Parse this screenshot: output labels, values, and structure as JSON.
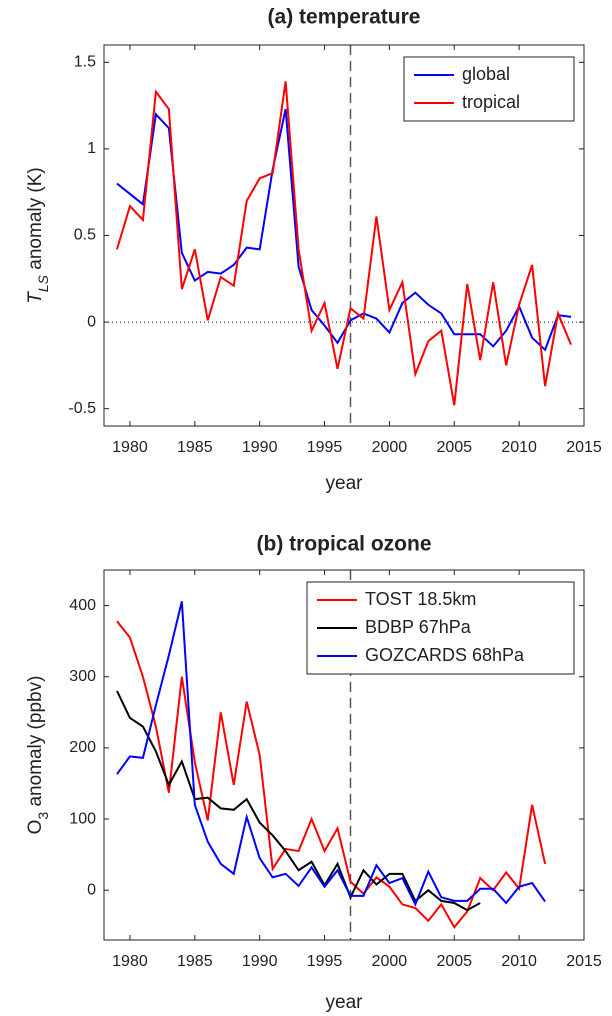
{
  "chart_data": [
    {
      "type": "line",
      "title": "(a) temperature",
      "xlabel": "year",
      "ylabel_parts": [
        "T",
        "LS",
        " anomaly (K)"
      ],
      "x": [
        1979,
        1980,
        1981,
        1982,
        1983,
        1984,
        1985,
        1986,
        1987,
        1988,
        1989,
        1990,
        1991,
        1992,
        1993,
        1994,
        1995,
        1996,
        1997,
        1998,
        1999,
        2000,
        2001,
        2002,
        2003,
        2004,
        2005,
        2006,
        2007,
        2008,
        2009,
        2010,
        2011,
        2012,
        2013,
        2014
      ],
      "series": [
        {
          "name": "global",
          "color": "#0000ff",
          "values": [
            0.8,
            0.74,
            0.68,
            1.2,
            1.12,
            0.4,
            0.24,
            0.29,
            0.28,
            0.33,
            0.43,
            0.42,
            0.88,
            1.23,
            0.32,
            0.07,
            -0.02,
            -0.12,
            0.01,
            0.05,
            0.02,
            -0.06,
            0.11,
            0.17,
            0.1,
            0.05,
            -0.07,
            -0.07,
            -0.07,
            -0.14,
            -0.05,
            0.09,
            -0.09,
            -0.16,
            0.04,
            0.03
          ]
        },
        {
          "name": "tropical",
          "color": "#ff0000",
          "values": [
            0.42,
            0.67,
            0.59,
            1.33,
            1.23,
            0.19,
            0.42,
            0.01,
            0.26,
            0.21,
            0.7,
            0.83,
            0.86,
            1.39,
            0.42,
            -0.05,
            0.11,
            -0.27,
            0.08,
            0.02,
            0.61,
            0.07,
            0.23,
            -0.3,
            -0.11,
            -0.05,
            -0.48,
            0.22,
            -0.22,
            0.23,
            -0.25,
            0.1,
            0.33,
            -0.37,
            0.05,
            -0.13
          ]
        }
      ],
      "xlim": [
        1978,
        2015
      ],
      "xticks": [
        1980,
        1985,
        1990,
        1995,
        2000,
        2005,
        2010,
        2015
      ],
      "ylim": [
        -0.6,
        1.6
      ],
      "yticks": [
        -0.5,
        0,
        0.5,
        1,
        1.5
      ],
      "vline": 1997,
      "hline": 0,
      "legend": "northeast"
    },
    {
      "type": "line",
      "title": "(b) tropical ozone",
      "xlabel": "year",
      "ylabel_parts": [
        "O",
        "3",
        " anomaly (ppbv)"
      ],
      "x": [
        1979,
        1980,
        1981,
        1982,
        1983,
        1984,
        1985,
        1986,
        1987,
        1988,
        1989,
        1990,
        1991,
        1992,
        1993,
        1994,
        1995,
        1996,
        1997,
        1998,
        1999,
        2000,
        2001,
        2002,
        2003,
        2004,
        2005,
        2006,
        2007,
        2008,
        2009,
        2010,
        2011,
        2012
      ],
      "series": [
        {
          "name": "TOST 18.5km",
          "color": "#ff0000",
          "values": [
            378,
            355,
            300,
            230,
            137,
            300,
            180,
            98,
            250,
            148,
            265,
            190,
            30,
            58,
            55,
            100,
            55,
            87,
            12,
            -5,
            18,
            5,
            -20,
            -25,
            -43,
            -20,
            -52,
            -30,
            17,
            0,
            25,
            2,
            120,
            37
          ]
        },
        {
          "name": "BDBP 67hPa",
          "color": "#000000",
          "values": [
            280,
            242,
            230,
            195,
            148,
            181,
            128,
            130,
            115,
            113,
            128,
            95,
            77,
            55,
            28,
            40,
            7,
            37,
            -10,
            28,
            8,
            23,
            23,
            -15,
            0,
            -15,
            -18,
            -28,
            -18,
            null,
            null,
            null,
            null,
            null
          ]
        },
        {
          "name": "GOZCARDS 68hPa",
          "color": "#0000ff",
          "values": [
            163,
            188,
            186,
            260,
            330,
            406,
            120,
            68,
            37,
            23,
            103,
            45,
            18,
            23,
            6,
            32,
            5,
            28,
            -8,
            -8,
            35,
            10,
            17,
            -20,
            26,
            -10,
            -15,
            -15,
            2,
            2,
            -18,
            5,
            10,
            -16
          ]
        }
      ],
      "xlim": [
        1978,
        2015
      ],
      "xticks": [
        1980,
        1985,
        1990,
        1995,
        2000,
        2005,
        2010,
        2015
      ],
      "ylim": [
        -70,
        450
      ],
      "yticks": [
        0,
        100,
        200,
        300,
        400
      ],
      "vline": 1997,
      "legend": "northeast"
    }
  ]
}
